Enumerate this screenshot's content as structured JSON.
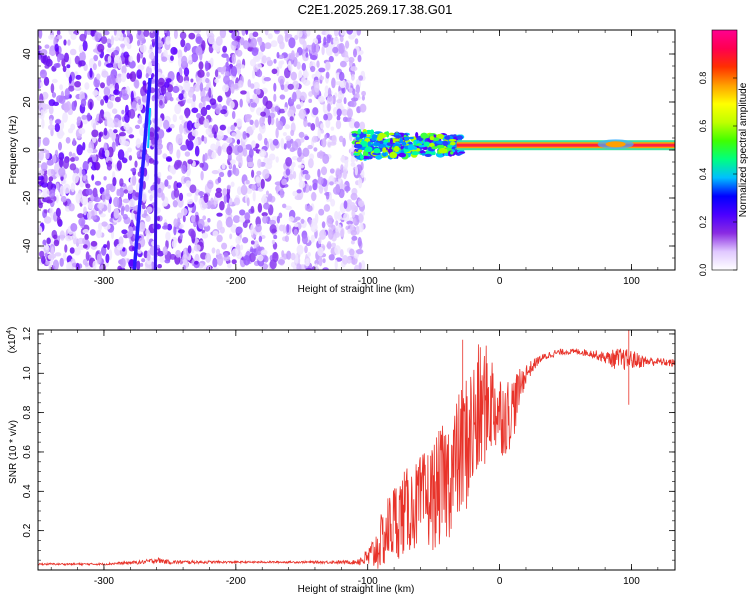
{
  "page": {
    "title": "C2E1.2025.269.17.38.G01"
  },
  "colors": {
    "snr_line": "#e8332a",
    "axis": "#000000",
    "band": "#ff3030"
  },
  "chart_data": [
    {
      "type": "heatmap",
      "name": "spectrogram",
      "title": "C2E1.2025.269.17.38.G01",
      "xlabel": "Height of straight line (km)",
      "ylabel": "Frequency (Hz)",
      "xlim": [
        -350,
        133
      ],
      "ylim": [
        -50,
        50
      ],
      "xticks": [
        -300,
        -200,
        -100,
        0,
        100
      ],
      "yticks": [
        -40,
        -20,
        0,
        20,
        40
      ],
      "colorbar": {
        "label": "Normalized spectral amplitude",
        "range": [
          0,
          1
        ],
        "ticks": [
          "0.0",
          "0.2",
          "0.4",
          "0.6",
          "0.8"
        ],
        "colors": [
          "#ffffff",
          "#e0c8ff",
          "#8a2be2",
          "#4b00ff",
          "#0000ff",
          "#00bfff",
          "#00ff80",
          "#40ff00",
          "#c0ff00",
          "#ffff00",
          "#ffa000",
          "#ff3000",
          "#ff0050",
          "#ff0090"
        ]
      },
      "noise_region_x": [
        -350,
        -103
      ],
      "carrier": {
        "frequency_hz": 2,
        "x_start": -110,
        "x_end": 133
      },
      "streaks": [
        {
          "x_top": -265,
          "y_top": 30,
          "x_bottom": -277,
          "y_bottom": -50
        },
        {
          "x_top": -260,
          "y_top": 50,
          "x_bottom": -261,
          "y_bottom": -50
        }
      ]
    },
    {
      "type": "line",
      "name": "snr",
      "xlabel": "Height of straight line (km)",
      "ylabel": "SNR (10 * v/v)",
      "multiplier": "(x10",
      "multiplier_exp": "4",
      "xlim": [
        -350,
        133
      ],
      "ylim": [
        0,
        1.22
      ],
      "xticks": [
        -300,
        -200,
        -100,
        0,
        100
      ],
      "yticks": [
        "0.2",
        "0.4",
        "0.6",
        "0.8",
        "1.0",
        "1.2"
      ],
      "ytick_values": [
        0.2,
        0.4,
        0.6,
        0.8,
        1.0,
        1.2
      ],
      "series": [
        {
          "name": "SNR",
          "x": [
            -350,
            -300,
            -270,
            -260,
            -250,
            -200,
            -150,
            -110,
            -100,
            -95,
            -90,
            -85,
            -80,
            -75,
            -70,
            -65,
            -60,
            -55,
            -50,
            -45,
            -40,
            -35,
            -30,
            -25,
            -20,
            -15,
            -10,
            -5,
            0,
            5,
            10,
            15,
            20,
            30,
            40,
            50,
            60,
            70,
            80,
            90,
            100,
            110,
            120,
            133
          ],
          "values": [
            0.03,
            0.03,
            0.04,
            0.05,
            0.04,
            0.04,
            0.04,
            0.04,
            0.06,
            0.09,
            0.14,
            0.2,
            0.25,
            0.28,
            0.3,
            0.32,
            0.34,
            0.36,
            0.38,
            0.42,
            0.46,
            0.52,
            0.58,
            0.65,
            0.72,
            0.8,
            0.85,
            0.85,
            0.8,
            0.78,
            0.82,
            0.92,
            1.0,
            1.07,
            1.1,
            1.11,
            1.11,
            1.1,
            1.08,
            1.07,
            1.07,
            1.06,
            1.06,
            1.05
          ],
          "noise_amplitude": [
            0.005,
            0.005,
            0.01,
            0.015,
            0.01,
            0.005,
            0.005,
            0.01,
            0.05,
            0.1,
            0.14,
            0.18,
            0.2,
            0.22,
            0.22,
            0.22,
            0.24,
            0.26,
            0.28,
            0.3,
            0.32,
            0.32,
            0.34,
            0.36,
            0.38,
            0.36,
            0.3,
            0.26,
            0.22,
            0.2,
            0.18,
            0.1,
            0.05,
            0.02,
            0.02,
            0.015,
            0.015,
            0.02,
            0.03,
            0.06,
            0.05,
            0.03,
            0.02,
            0.02
          ]
        }
      ],
      "annotations": [
        {
          "x": -28,
          "y": 1.17
        },
        {
          "x": 98,
          "y": 1.22
        },
        {
          "x": 98,
          "y": 0.84
        }
      ]
    }
  ]
}
